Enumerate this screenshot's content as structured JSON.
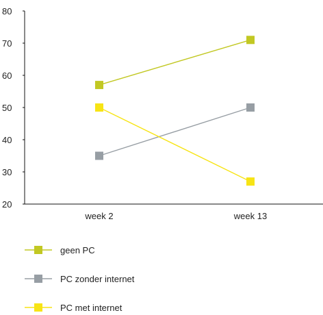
{
  "chart_data": {
    "type": "line",
    "categories": [
      "week 2",
      "week 13"
    ],
    "series": [
      {
        "name": "geen PC",
        "values": [
          57,
          71
        ],
        "color": "#c2c823"
      },
      {
        "name": "PC zonder internet",
        "values": [
          35,
          50
        ],
        "color": "#979ea4"
      },
      {
        "name": "PC met internet",
        "values": [
          50,
          27
        ],
        "color": "#f7e415"
      }
    ],
    "ylim": [
      20,
      80
    ],
    "yticks": [
      20,
      30,
      40,
      50,
      60,
      70,
      80
    ],
    "title": "",
    "xlabel": "",
    "ylabel": "",
    "grid": false,
    "legend_position": "bottom-left",
    "marker": "square"
  }
}
